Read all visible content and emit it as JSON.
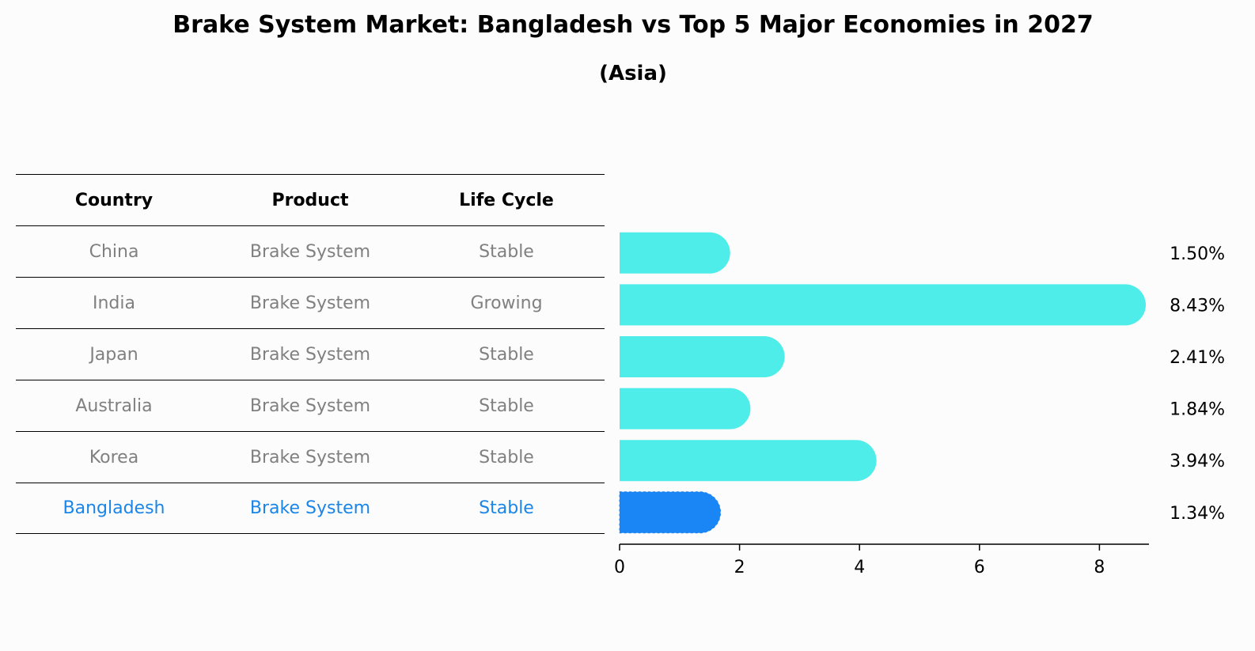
{
  "header": {
    "title": "Brake System Market: Bangladesh vs Top 5 Major Economies in 2027",
    "subtitle": "(Asia)"
  },
  "table": {
    "columns": [
      "Country",
      "Product",
      "Life Cycle"
    ],
    "rows": [
      {
        "country": "China",
        "product": "Brake System",
        "life_cycle": "Stable"
      },
      {
        "country": "India",
        "product": "Brake System",
        "life_cycle": "Growing"
      },
      {
        "country": "Japan",
        "product": "Brake System",
        "life_cycle": "Stable"
      },
      {
        "country": "Australia",
        "product": "Brake System",
        "life_cycle": "Stable"
      },
      {
        "country": "Korea",
        "product": "Brake System",
        "life_cycle": "Stable"
      },
      {
        "country": "Bangladesh",
        "product": "Brake System",
        "life_cycle": "Stable"
      }
    ]
  },
  "chart_data": {
    "type": "bar",
    "orientation": "horizontal",
    "categories": [
      "China",
      "India",
      "Japan",
      "Australia",
      "Korea",
      "Bangladesh"
    ],
    "values": [
      1.5,
      8.43,
      2.41,
      1.84,
      3.94,
      1.34
    ],
    "value_labels": [
      "1.50%",
      "8.43%",
      "2.41%",
      "1.84%",
      "3.94%",
      "1.34%"
    ],
    "xlim": [
      0,
      8.85
    ],
    "xticks": [
      0,
      2,
      4,
      6,
      8
    ],
    "highlight": "Bangladesh",
    "colors": {
      "default": "#4eedea",
      "highlight": "#1a85f5",
      "highlight_text": "#1a85e8",
      "muted_text": "#808080"
    }
  }
}
